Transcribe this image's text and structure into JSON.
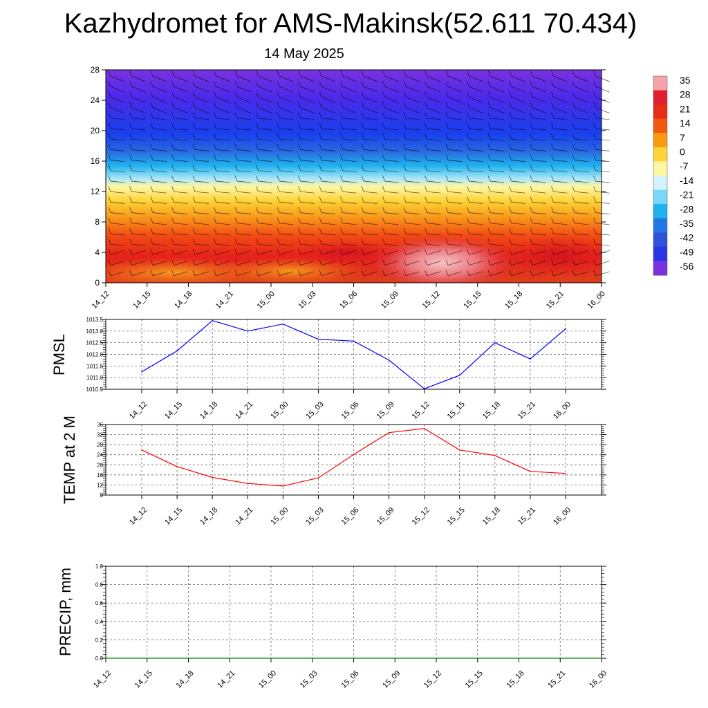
{
  "title": "Kazhydromet for AMS-Makinsk(52.611 70.434)",
  "subtitle": "14 May 2025",
  "time_labels": [
    "14_12",
    "14_15",
    "14_18",
    "14_21",
    "15_00",
    "15_03",
    "15_06",
    "15_09",
    "15_12",
    "15_15",
    "15_18",
    "15_21",
    "16_00"
  ],
  "chart_data": [
    {
      "type": "heatmap",
      "title": "Kazhydromet for AMS-Makinsk(52.611 70.434)",
      "subtitle": "14 May 2025",
      "x": [
        "14_12",
        "14_15",
        "14_18",
        "14_21",
        "15_00",
        "15_03",
        "15_06",
        "15_09",
        "15_12",
        "15_15",
        "15_18",
        "15_21",
        "16_00"
      ],
      "ylim": [
        0,
        28
      ],
      "yticks": [
        0,
        4,
        8,
        12,
        16,
        20,
        24,
        28
      ],
      "colorbar": {
        "labels": [
          "35",
          "28",
          "21",
          "14",
          "7",
          "0",
          "-7",
          "-14",
          "-21",
          "-28",
          "-35",
          "-42",
          "-49",
          "-56"
        ],
        "colors": [
          "#f4a3a7",
          "#e0202e",
          "#e82c1c",
          "#f25a12",
          "#fa9a0f",
          "#fed43a",
          "#fef7a2",
          "#d6f2fb",
          "#79d8f7",
          "#1fb2ee",
          "#2178e4",
          "#2e52d8",
          "#2a36e6",
          "#7a32e0"
        ]
      },
      "wind_barbs": true,
      "grid": false
    },
    {
      "type": "line",
      "ylabel": "PMSL",
      "x": [
        "14_12",
        "14_15",
        "14_18",
        "14_21",
        "15_00",
        "15_03",
        "15_06",
        "15_09",
        "15_12",
        "15_15",
        "15_18",
        "15_21",
        "16_00"
      ],
      "series": [
        {
          "color": "#0000ff",
          "values": [
            1011.25,
            1012.15,
            1013.45,
            1013.0,
            1013.3,
            1012.65,
            1012.57,
            1011.75,
            1010.52,
            1011.1,
            1012.5,
            1011.8,
            1013.1
          ]
        }
      ],
      "ylim": [
        1010.5,
        1013.5
      ],
      "yticks": [
        "1010.5",
        "1011.0",
        "1011.5",
        "1012.0",
        "1012.5",
        "1013.0",
        "1013.5"
      ],
      "grid": true
    },
    {
      "type": "line",
      "ylabel": "TEMP at 2 M",
      "x": [
        "14_12",
        "14_15",
        "14_18",
        "14_21",
        "15_00",
        "15_03",
        "15_06",
        "15_09",
        "15_12",
        "15_15",
        "15_18",
        "15_21",
        "16_00"
      ],
      "series": [
        {
          "color": "#ff0000",
          "values": [
            25.9,
            19.3,
            15.0,
            12.6,
            11.6,
            14.8,
            24.1,
            32.8,
            34.4,
            25.9,
            23.7,
            17.4,
            16.6
          ]
        }
      ],
      "ylim": [
        8,
        36
      ],
      "yticks": [
        "8",
        "12",
        "16",
        "20",
        "24",
        "28",
        "32",
        "36"
      ],
      "grid": true
    },
    {
      "type": "line",
      "ylabel": "PRECIP, mm",
      "x": [
        "14_12",
        "14_15",
        "14_18",
        "14_21",
        "15_00",
        "15_03",
        "15_06",
        "15_09",
        "15_12",
        "15_15",
        "15_18",
        "15_21",
        "16_00"
      ],
      "series": [
        {
          "color": "#008000",
          "values": [
            0,
            0,
            0,
            0,
            0,
            0,
            0,
            0,
            0,
            0,
            0,
            0,
            0
          ]
        }
      ],
      "ylim": [
        0,
        1.0
      ],
      "yticks": [
        "0.0",
        "0.2",
        "0.4",
        "0.6",
        "0.8",
        "1.0"
      ],
      "grid": true
    }
  ]
}
